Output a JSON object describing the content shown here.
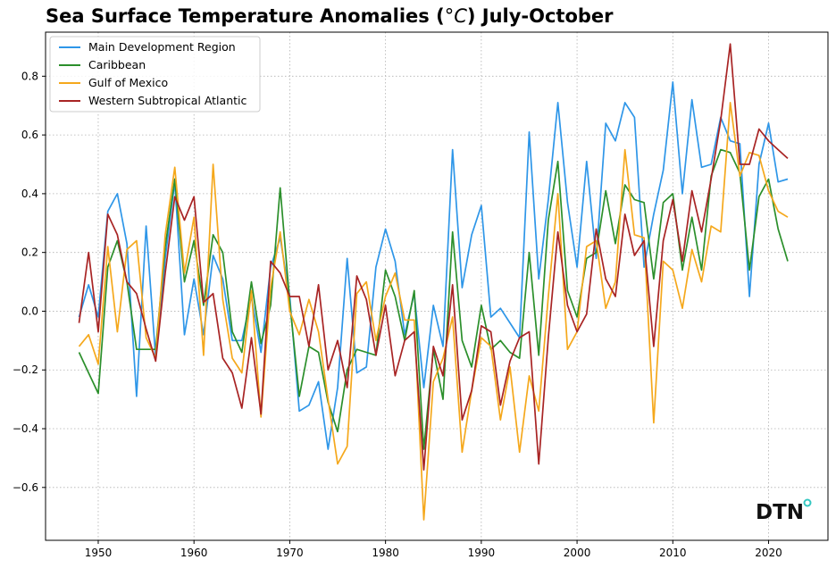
{
  "chart_data": {
    "type": "line",
    "title": "Sea Surface Temperature Anomalies (°C) July-October",
    "title_prefix": "Sea Surface Temperature Anomalies (",
    "title_unit": "°C",
    "title_suffix": ") July-October",
    "xlabel": "",
    "ylabel": "",
    "xlim": [
      1944.5,
      2026.2
    ],
    "ylim": [
      -0.78,
      0.95
    ],
    "xticks": [
      1950,
      1960,
      1970,
      1980,
      1990,
      2000,
      2010,
      2020
    ],
    "yticks": [
      -0.6,
      -0.4,
      -0.2,
      0.0,
      0.2,
      0.4,
      0.6,
      0.8
    ],
    "ytick_labels": [
      "−0.6",
      "−0.4",
      "−0.2",
      "0.0",
      "0.2",
      "0.4",
      "0.6",
      "0.8"
    ],
    "grid": true,
    "legend_position": "top-left",
    "x_start": 1948,
    "series": [
      {
        "name": "Main Development Region",
        "color": "#2e96e8",
        "values": [
          -0.02,
          0.09,
          -0.02,
          0.34,
          0.4,
          0.23,
          -0.29,
          0.29,
          -0.16,
          0.18,
          0.44,
          -0.08,
          0.11,
          -0.08,
          0.19,
          0.11,
          -0.1,
          -0.1,
          0.05,
          -0.14,
          0.15,
          0.25,
          0.05,
          -0.34,
          -0.32,
          -0.24,
          -0.47,
          -0.26,
          0.18,
          -0.21,
          -0.19,
          0.15,
          0.28,
          0.17,
          -0.08,
          0.06,
          -0.26,
          0.02,
          -0.12,
          0.55,
          0.08,
          0.26,
          0.36,
          -0.02,
          0.01,
          -0.04,
          -0.09,
          0.61,
          0.11,
          0.38,
          0.71,
          0.37,
          0.15,
          0.51,
          0.18,
          0.64,
          0.58,
          0.71,
          0.66,
          0.15,
          0.33,
          0.48,
          0.78,
          0.4,
          0.72,
          0.49,
          0.5,
          0.66,
          0.58,
          0.57,
          0.05,
          0.5,
          0.64,
          0.44,
          0.45
        ]
      },
      {
        "name": "Caribbean",
        "color": "#2b8f2b",
        "values": [
          -0.14,
          -0.21,
          -0.28,
          0.15,
          0.24,
          0.1,
          -0.13,
          -0.13,
          -0.13,
          0.22,
          0.45,
          0.1,
          0.24,
          0.02,
          0.26,
          0.2,
          -0.07,
          -0.14,
          0.1,
          -0.11,
          0.02,
          0.42,
          0.03,
          -0.29,
          -0.12,
          -0.14,
          -0.31,
          -0.41,
          -0.2,
          -0.13,
          -0.14,
          -0.15,
          0.14,
          0.05,
          -0.1,
          0.07,
          -0.47,
          -0.13,
          -0.3,
          0.27,
          -0.1,
          -0.19,
          0.02,
          -0.13,
          -0.1,
          -0.14,
          -0.16,
          0.2,
          -0.15,
          0.31,
          0.51,
          0.07,
          -0.02,
          0.18,
          0.2,
          0.41,
          0.23,
          0.43,
          0.38,
          0.37,
          0.11,
          0.37,
          0.4,
          0.14,
          0.32,
          0.14,
          0.46,
          0.55,
          0.54,
          0.47,
          0.14,
          0.39,
          0.45,
          0.28,
          0.17
        ]
      },
      {
        "name": "Gulf of Mexico",
        "color": "#f5a81c",
        "values": [
          -0.12,
          -0.08,
          -0.18,
          0.22,
          -0.07,
          0.21,
          0.24,
          -0.09,
          -0.16,
          0.26,
          0.49,
          0.13,
          0.32,
          -0.15,
          0.5,
          0.04,
          -0.16,
          -0.21,
          0.07,
          -0.36,
          0.08,
          0.27,
          0.0,
          -0.08,
          0.04,
          -0.07,
          -0.3,
          -0.52,
          -0.46,
          0.06,
          0.1,
          -0.1,
          0.05,
          0.13,
          -0.03,
          -0.03,
          -0.71,
          -0.24,
          -0.16,
          -0.02,
          -0.48,
          -0.27,
          -0.09,
          -0.12,
          -0.37,
          -0.19,
          -0.48,
          -0.22,
          -0.34,
          0.05,
          0.4,
          -0.13,
          -0.07,
          0.22,
          0.24,
          0.01,
          0.1,
          0.55,
          0.26,
          0.25,
          -0.38,
          0.17,
          0.14,
          0.01,
          0.21,
          0.1,
          0.29,
          0.27,
          0.71,
          0.46,
          0.54,
          0.53,
          0.41,
          0.34,
          0.32
        ]
      },
      {
        "name": "Western Subtropical Atlantic",
        "color": "#a82424",
        "values": [
          -0.04,
          0.2,
          -0.07,
          0.33,
          0.26,
          0.1,
          0.06,
          -0.06,
          -0.17,
          0.13,
          0.39,
          0.31,
          0.39,
          0.03,
          0.06,
          -0.16,
          -0.21,
          -0.33,
          -0.09,
          -0.35,
          0.17,
          0.13,
          0.05,
          0.05,
          -0.12,
          0.09,
          -0.2,
          -0.1,
          -0.26,
          0.12,
          0.04,
          -0.15,
          0.02,
          -0.22,
          -0.1,
          -0.07,
          -0.54,
          -0.12,
          -0.22,
          0.09,
          -0.37,
          -0.27,
          -0.05,
          -0.07,
          -0.32,
          -0.17,
          -0.09,
          -0.07,
          -0.52,
          -0.09,
          0.27,
          0.02,
          -0.07,
          -0.01,
          0.28,
          0.11,
          0.05,
          0.33,
          0.19,
          0.24,
          -0.12,
          0.24,
          0.38,
          0.17,
          0.41,
          0.27,
          0.45,
          0.65,
          0.91,
          0.5,
          0.5,
          0.62,
          0.58,
          0.55,
          0.52
        ]
      }
    ]
  },
  "logo": {
    "text": "DTN",
    "dot_color": "#35c7c1"
  }
}
